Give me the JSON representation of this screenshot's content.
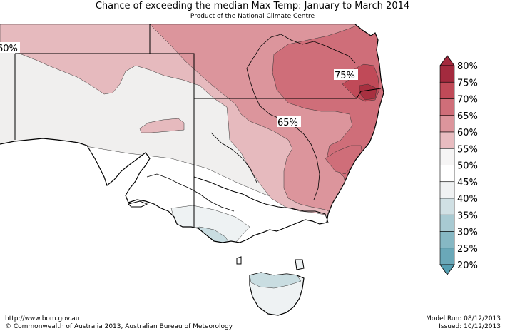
{
  "header": {
    "title": "Chance of exceeding the median Max Temp: January to March 2014",
    "subtitle": "Product of the National Climate Centre"
  },
  "map": {
    "region": "South-eastern Australia",
    "contour_labels": [
      "60%",
      "75%",
      "65%"
    ]
  },
  "legend": {
    "labels": [
      "80%",
      "75%",
      "70%",
      "65%",
      "60%",
      "55%",
      "50%",
      "45%",
      "40%",
      "35%",
      "30%",
      "25%",
      "20%"
    ],
    "colors": [
      "#a32a3e",
      "#c04a58",
      "#cf6e79",
      "#dc959c",
      "#e8bcc0",
      "#f6f5f5",
      "#ffffff",
      "#f0f2f3",
      "#d0e0e4",
      "#a8cad2",
      "#86b8c4",
      "#6aa8b8",
      "#559fb2"
    ],
    "arrow_top_color": "#a32a3e",
    "arrow_bottom_color": "#559fb2"
  },
  "footer": {
    "url": "http://www.bom.gov.au",
    "copyright": "©  Commonwealth of Australia 2013, Australian Bureau of Meteorology",
    "model_run": "Model Run: 08/12/2013",
    "issued": "Issued: 10/12/2013"
  }
}
